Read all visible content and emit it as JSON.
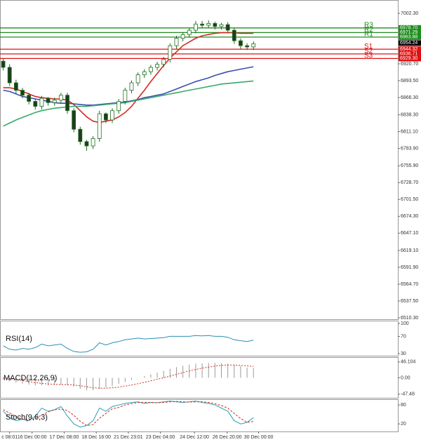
{
  "chart_data": [
    {
      "type": "candlestick",
      "xlim": [
        -0.5,
        61.5
      ],
      "xticks": [
        {
          "value": 1,
          "label": "c 08:01"
        },
        {
          "value": 4.5,
          "label": "16 Dec 00:00"
        },
        {
          "value": 9.5,
          "label": "17 Dec 08:00"
        },
        {
          "value": 14.5,
          "label": "18 Dec 16:00"
        },
        {
          "value": 19.5,
          "label": "21 Dec 23:01"
        },
        {
          "value": 24.5,
          "label": "23 Dec 04:00"
        },
        {
          "value": 29.8,
          "label": "24 Dec 12:00"
        },
        {
          "value": 34.9,
          "label": "26 Dec 20:00"
        },
        {
          "value": 39.8,
          "label": "30 Dec 00:00"
        }
      ],
      "ylim": [
        6508,
        7022.7
      ],
      "yticks": [
        {
          "value": 7002.3,
          "label": "7002.30"
        },
        {
          "value": 6920.7,
          "label": "6920.70"
        },
        {
          "value": 6893.5,
          "label": "6893.50"
        },
        {
          "value": 6866.3,
          "label": "6866.30"
        },
        {
          "value": 6838.3,
          "label": "6838.30"
        },
        {
          "value": 6811.1,
          "label": "6811.10"
        },
        {
          "value": 6783.9,
          "label": "6783.90"
        },
        {
          "value": 6755.9,
          "label": "6755.90"
        },
        {
          "value": 6728.7,
          "label": "6728.70"
        },
        {
          "value": 6701.5,
          "label": "6701.50"
        },
        {
          "value": 6674.3,
          "label": "6674.30"
        },
        {
          "value": 6647.1,
          "label": "6647.10"
        },
        {
          "value": 6619.1,
          "label": "6619.10"
        },
        {
          "value": 6591.9,
          "label": "6591.90"
        },
        {
          "value": 6564.7,
          "label": "6564.70"
        },
        {
          "value": 6537.5,
          "label": "6537.50"
        },
        {
          "value": 6510.3,
          "label": "6510.30"
        }
      ],
      "up_color": "#ffffff",
      "down_color": "#1d3d1d",
      "outline_color": "#1f6f1f",
      "open": [
        6925,
        6915,
        6890,
        6878,
        6870,
        6860,
        6852,
        6865,
        6858,
        6862,
        6870,
        6845,
        6815,
        6795,
        6788,
        6800,
        6840,
        6830,
        6845,
        6860,
        6878,
        6890,
        6903,
        6908,
        6915,
        6920,
        6928,
        6950,
        6962,
        6968,
        6975,
        6985,
        6983,
        6986,
        6981,
        6984,
        6975,
        6958,
        6950,
        6948
      ],
      "high": [
        6930,
        6920,
        6895,
        6882,
        6874,
        6864,
        6869,
        6867,
        6866,
        6874,
        6874,
        6849,
        6819,
        6798,
        6804,
        6845,
        6842,
        6849,
        6864,
        6882,
        6894,
        6907,
        6912,
        6919,
        6924,
        6932,
        6954,
        6966,
        6972,
        6979,
        6990,
        6990,
        6991,
        6989,
        6987,
        6988,
        6979,
        6962,
        6954,
        6957
      ],
      "low": [
        6910,
        6885,
        6873,
        6865,
        6855,
        6847,
        6847,
        6853,
        6853,
        6857,
        6840,
        6810,
        6790,
        6780,
        6783,
        6795,
        6825,
        6825,
        6840,
        6855,
        6873,
        6885,
        6898,
        6903,
        6910,
        6915,
        6923,
        6945,
        6957,
        6963,
        6970,
        6978,
        6978,
        6976,
        6976,
        6970,
        6953,
        6945,
        6943,
        6943
      ],
      "close": [
        6915,
        6890,
        6878,
        6870,
        6860,
        6852,
        6865,
        6858,
        6862,
        6870,
        6845,
        6815,
        6795,
        6788,
        6800,
        6840,
        6830,
        6845,
        6860,
        6878,
        6890,
        6903,
        6908,
        6915,
        6920,
        6928,
        6950,
        6962,
        6968,
        6975,
        6985,
        6983,
        6986,
        6981,
        6984,
        6975,
        6958,
        6950,
        6948,
        6953
      ],
      "series": [
        {
          "color": "#d42a1e",
          "values": [
            6882,
            6882,
            6880,
            6876,
            6872,
            6868,
            6866,
            6865,
            6864,
            6864,
            6862,
            6855,
            6845,
            6835,
            6828,
            6826,
            6828,
            6830,
            6835,
            6842,
            6852,
            6865,
            6878,
            6892,
            6905,
            6918,
            6930,
            6940,
            6950,
            6956,
            6962,
            6966,
            6968,
            6970,
            6971,
            6971,
            6971,
            6970,
            6970,
            6970
          ]
        },
        {
          "color": "#3a4fb0",
          "values": [
            6878,
            6876,
            6872,
            6868,
            6866,
            6864,
            6862,
            6860,
            6858,
            6857,
            6857,
            6856,
            6855,
            6854,
            6854,
            6855,
            6856,
            6857,
            6858,
            6859,
            6861,
            6863,
            6866,
            6868,
            6870,
            6872,
            6876,
            6880,
            6884,
            6888,
            6892,
            6895,
            6898,
            6902,
            6905,
            6908,
            6910,
            6912,
            6914,
            6916
          ]
        },
        {
          "color": "#3aa86a",
          "values": [
            6820,
            6825,
            6830,
            6834,
            6838,
            6842,
            6845,
            6847,
            6849,
            6850,
            6851,
            6852,
            6852,
            6852,
            6853,
            6854,
            6855,
            6856,
            6857,
            6858,
            6860,
            6862,
            6864,
            6866,
            6868,
            6870,
            6872,
            6874,
            6876,
            6878,
            6880,
            6882,
            6884,
            6886,
            6888,
            6889,
            6890,
            6891,
            6892,
            6893
          ]
        }
      ],
      "levels": [
        {
          "name": "R3",
          "value": 6978.7,
          "label": "6978.70",
          "color": "#1e8c1e"
        },
        {
          "name": "R2",
          "value": 6971.29,
          "label": "6971.29",
          "color": "#1e8c1e"
        },
        {
          "name": "R1",
          "value": 6963.88,
          "label": "6963.88",
          "color": "#1e8c1e"
        },
        {
          "name": "S1",
          "value": 6944.32,
          "label": "6944.32",
          "color": "#e01010"
        },
        {
          "name": "S2",
          "value": 6936.71,
          "label": "6936.71",
          "color": "#e01010"
        },
        {
          "name": "S3",
          "value": 6929.3,
          "label": "6929.30",
          "color": "#e01010"
        }
      ],
      "current_price": 6954.24
    },
    {
      "type": "line",
      "title": "RSI(14)",
      "ylim": [
        25,
        105
      ],
      "yticks": [
        100,
        70,
        30
      ],
      "series": [
        {
          "color": "#2a8fb8",
          "values": [
            48,
            40,
            38,
            42,
            40,
            44,
            52,
            48,
            50,
            52,
            42,
            35,
            33,
            34,
            40,
            55,
            50,
            55,
            58,
            62,
            64,
            66,
            64,
            65,
            66,
            67,
            70,
            70,
            70,
            70,
            72,
            71,
            72,
            70,
            70,
            68,
            62,
            60,
            58,
            61
          ]
        }
      ]
    },
    {
      "type": "macd",
      "title": "MACD(12,26,9)",
      "ylim": [
        -58,
        58
      ],
      "yticks": [
        46.104,
        {
          "value": 0,
          "label": "0.00"
        },
        -47.48
      ],
      "histogram": {
        "color": "#9a9a9a",
        "values": [
          -5,
          -10,
          -14,
          -17,
          -20,
          -22,
          -22,
          -22,
          -21,
          -20,
          -22,
          -26,
          -32,
          -36,
          -36,
          -32,
          -28,
          -24,
          -18,
          -12,
          -6,
          0,
          5,
          10,
          15,
          20,
          26,
          31,
          35,
          38,
          41,
          42,
          43,
          43,
          42,
          41,
          38,
          34,
          30,
          28
        ]
      },
      "signal": {
        "color": "#d42a1e",
        "values": [
          0,
          -2,
          -5,
          -8,
          -11,
          -14,
          -16,
          -18,
          -19,
          -20,
          -20,
          -21,
          -23,
          -26,
          -29,
          -30,
          -30,
          -29,
          -27,
          -24,
          -21,
          -17,
          -13,
          -9,
          -4,
          0,
          5,
          10,
          15,
          20,
          24,
          28,
          31,
          34,
          36,
          37,
          37,
          36,
          35,
          33
        ]
      }
    },
    {
      "type": "line",
      "title": "Stoch(9,6,3)",
      "ylim": [
        -4,
        96
      ],
      "yticks": [
        80,
        20
      ],
      "series": [
        {
          "color": "#2a9fb0",
          "values": [
            60,
            40,
            30,
            35,
            30,
            45,
            70,
            60,
            65,
            75,
            45,
            20,
            10,
            15,
            30,
            70,
            60,
            75,
            80,
            85,
            88,
            90,
            85,
            88,
            87,
            90,
            92,
            90,
            88,
            90,
            92,
            88,
            85,
            80,
            70,
            60,
            30,
            20,
            25,
            40
          ]
        },
        {
          "color": "#d42a1e",
          "dashed": true,
          "values": [
            65,
            55,
            42,
            35,
            32,
            37,
            48,
            58,
            65,
            67,
            62,
            47,
            28,
            15,
            18,
            38,
            53,
            68,
            72,
            80,
            84,
            88,
            88,
            88,
            87,
            88,
            90,
            91,
            90,
            89,
            90,
            90,
            88,
            84,
            78,
            70,
            53,
            37,
            25,
            28
          ]
        }
      ]
    }
  ]
}
